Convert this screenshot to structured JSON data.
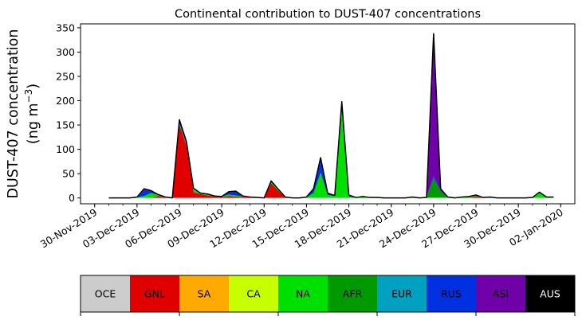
{
  "chart_data": {
    "type": "area",
    "stacked": true,
    "title": "Continental contribution to DUST-407 concentrations",
    "ylabel_main": "DUST-407 concentration",
    "ylabel_unit": "(ng m",
    "ylabel_unit_sup": "−3",
    "ylabel_unit_close": ")",
    "ylim": [
      -12,
      358
    ],
    "yticks": [
      0,
      50,
      100,
      150,
      200,
      250,
      300,
      350
    ],
    "x_range": [
      "2019-11-29",
      "2020-01-03"
    ],
    "xtick_labels": [
      "30-Nov-2019",
      "03-Dec-2019",
      "06-Dec-2019",
      "09-Dec-2019",
      "12-Dec-2019",
      "15-Dec-2019",
      "18-Dec-2019",
      "21-Dec-2019",
      "24-Dec-2019",
      "27-Dec-2019",
      "30-Dec-2019",
      "02-Jan-2020"
    ],
    "xtick_dates": [
      "2019-11-30",
      "2019-12-03",
      "2019-12-06",
      "2019-12-09",
      "2019-12-12",
      "2019-12-15",
      "2019-12-18",
      "2019-12-21",
      "2019-12-24",
      "2019-12-27",
      "2019-12-30",
      "2020-01-02"
    ],
    "x": [
      "2019-12-01",
      "2019-12-01T12:00",
      "2019-12-02",
      "2019-12-02T12:00",
      "2019-12-03",
      "2019-12-03T12:00",
      "2019-12-04",
      "2019-12-04T12:00",
      "2019-12-05",
      "2019-12-05T12:00",
      "2019-12-06",
      "2019-12-06T12:00",
      "2019-12-07",
      "2019-12-07T12:00",
      "2019-12-08",
      "2019-12-08T12:00",
      "2019-12-09",
      "2019-12-09T12:00",
      "2019-12-10",
      "2019-12-10T12:00",
      "2019-12-11",
      "2019-12-11T12:00",
      "2019-12-12",
      "2019-12-12T12:00",
      "2019-12-13",
      "2019-12-13T12:00",
      "2019-12-14",
      "2019-12-14T12:00",
      "2019-12-15",
      "2019-12-15T12:00",
      "2019-12-16",
      "2019-12-16T12:00",
      "2019-12-17",
      "2019-12-17T12:00",
      "2019-12-18",
      "2019-12-18T12:00",
      "2019-12-19",
      "2019-12-19T12:00",
      "2019-12-20",
      "2019-12-20T12:00",
      "2019-12-21",
      "2019-12-21T12:00",
      "2019-12-22",
      "2019-12-22T12:00",
      "2019-12-23",
      "2019-12-23T12:00",
      "2019-12-24",
      "2019-12-24T12:00",
      "2019-12-25",
      "2019-12-25T12:00",
      "2019-12-26",
      "2019-12-26T12:00",
      "2019-12-27",
      "2019-12-27T12:00",
      "2019-12-28",
      "2019-12-28T12:00",
      "2019-12-29",
      "2019-12-29T12:00",
      "2019-12-30",
      "2019-12-30T12:00",
      "2019-12-31",
      "2019-12-31T12:00",
      "2020-01-01",
      "2020-01-01T12:00"
    ],
    "series": [
      {
        "name": "OCE",
        "color": "#cccccc",
        "values": [
          0,
          0,
          0,
          0,
          0,
          0,
          0,
          0,
          0,
          0,
          0,
          0,
          0,
          0,
          0,
          0,
          0,
          0,
          0,
          0,
          0,
          0,
          0,
          0,
          0,
          0,
          0,
          0,
          0,
          0,
          0,
          0,
          0,
          0,
          0,
          0,
          0,
          0,
          0,
          0,
          0,
          0,
          0,
          0,
          0,
          0,
          0,
          0,
          0,
          0,
          0,
          0,
          0,
          0,
          0,
          0,
          0,
          0,
          0,
          0,
          0,
          0,
          0,
          0
        ]
      },
      {
        "name": "GNL",
        "color": "#e00000",
        "values": [
          0,
          0,
          0,
          0,
          0,
          0,
          0,
          4,
          1,
          0,
          150,
          108,
          12,
          8,
          5,
          3,
          2,
          4,
          3,
          2,
          1,
          1,
          0,
          30,
          15,
          1,
          0,
          0,
          0,
          0,
          0,
          0,
          0,
          0,
          0,
          0,
          0,
          0,
          0,
          0,
          0,
          0,
          0,
          0,
          0,
          0,
          0,
          0,
          0,
          0,
          0,
          0,
          3,
          0,
          0,
          0,
          0,
          0,
          0,
          0,
          0,
          0,
          0,
          0
        ]
      },
      {
        "name": "SA",
        "color": "#ffaa00",
        "values": [
          0,
          0,
          0,
          0,
          0,
          0,
          0,
          0,
          0,
          0,
          0,
          0,
          0,
          0,
          0,
          0,
          0,
          0,
          0,
          0,
          0,
          0,
          0,
          0,
          0,
          0,
          0,
          0,
          0,
          0,
          0,
          0,
          0,
          0,
          0,
          0,
          0,
          0,
          0,
          0,
          0,
          0,
          0,
          0,
          0,
          0,
          0,
          0,
          0,
          0,
          0,
          0,
          0,
          0,
          0,
          0,
          0,
          0,
          0,
          0,
          0,
          0,
          0,
          0
        ]
      },
      {
        "name": "CA",
        "color": "#c8ff00",
        "values": [
          0,
          0,
          0,
          0,
          0,
          0,
          0,
          0,
          0,
          0,
          0,
          0,
          0,
          0,
          0,
          0,
          0,
          0,
          0,
          0,
          0,
          0,
          0,
          0,
          0,
          0,
          0,
          0,
          0,
          0,
          0,
          0,
          0,
          0,
          0,
          0,
          0,
          0,
          0,
          0,
          0,
          0,
          0,
          0,
          0,
          0,
          0,
          0,
          0,
          0,
          0,
          0,
          0,
          0,
          0,
          0,
          0,
          0,
          0,
          0,
          0,
          0,
          0,
          0
        ]
      },
      {
        "name": "NA",
        "color": "#00e000",
        "values": [
          0,
          0,
          0,
          0,
          1,
          4,
          10,
          2,
          0,
          0,
          3,
          2,
          6,
          1,
          2,
          1,
          1,
          3,
          2,
          1,
          0,
          0,
          0,
          2,
          2,
          0,
          0,
          0,
          1,
          10,
          52,
          6,
          4,
          178,
          3,
          1,
          3,
          1,
          1,
          0,
          0,
          0,
          0,
          2,
          0,
          1,
          1,
          1,
          1,
          0,
          2,
          3,
          1,
          1,
          2,
          0,
          0,
          0,
          0,
          0,
          1,
          12,
          2,
          2
        ]
      },
      {
        "name": "AFR",
        "color": "#009900",
        "values": [
          0,
          0,
          0,
          0,
          0,
          0,
          0,
          0,
          0,
          0,
          0,
          0,
          0,
          0,
          0,
          0,
          0,
          0,
          0,
          0,
          0,
          0,
          0,
          0,
          0,
          0,
          0,
          0,
          0,
          0,
          0,
          0,
          0,
          0,
          0,
          0,
          0,
          0,
          0,
          0,
          0,
          0,
          0,
          0,
          0,
          0,
          40,
          12,
          0,
          0,
          0,
          0,
          0,
          0,
          0,
          0,
          0,
          0,
          0,
          0,
          0,
          0,
          0,
          0
        ]
      },
      {
        "name": "EUR",
        "color": "#00a0c0",
        "values": [
          0,
          0,
          0,
          0,
          0,
          0,
          0,
          0,
          0,
          0,
          0,
          0,
          0,
          0,
          0,
          0,
          0,
          0,
          0,
          0,
          0,
          0,
          0,
          0,
          0,
          0,
          0,
          0,
          0,
          0,
          0,
          0,
          0,
          0,
          0,
          0,
          0,
          0,
          0,
          0,
          0,
          0,
          0,
          0,
          0,
          0,
          0,
          0,
          0,
          0,
          0,
          0,
          0,
          0,
          0,
          0,
          0,
          0,
          0,
          0,
          0,
          0,
          0,
          0
        ]
      },
      {
        "name": "RUS",
        "color": "#0030e0",
        "values": [
          0,
          0,
          0,
          0,
          1,
          12,
          5,
          1,
          1,
          0,
          5,
          3,
          1,
          1,
          1,
          0,
          0,
          5,
          8,
          1,
          1,
          0,
          0,
          2,
          1,
          1,
          0,
          0,
          1,
          8,
          25,
          3,
          1,
          15,
          2,
          0,
          0,
          0,
          0,
          0,
          0,
          0,
          0,
          0,
          0,
          0,
          5,
          2,
          0,
          0,
          0,
          0,
          1,
          0,
          0,
          0,
          0,
          0,
          0,
          0,
          0,
          0,
          0,
          0
        ]
      },
      {
        "name": "ASI",
        "color": "#7000a8",
        "values": [
          0,
          0,
          0,
          0,
          0,
          3,
          0,
          0,
          0,
          0,
          3,
          3,
          1,
          0,
          0,
          0,
          0,
          1,
          1,
          0,
          0,
          0,
          0,
          1,
          0,
          0,
          0,
          0,
          0,
          1,
          6,
          1,
          0,
          5,
          1,
          0,
          0,
          0,
          0,
          0,
          0,
          0,
          0,
          0,
          0,
          0,
          292,
          4,
          1,
          0,
          0,
          0,
          1,
          0,
          0,
          0,
          0,
          0,
          0,
          0,
          0,
          0,
          0,
          0
        ]
      },
      {
        "name": "AUS",
        "color": "#000000",
        "values": [
          0,
          0,
          0,
          0,
          0,
          0,
          0,
          0,
          0,
          0,
          0,
          0,
          0,
          0,
          0,
          0,
          0,
          0,
          0,
          0,
          0,
          0,
          0,
          0,
          0,
          0,
          0,
          0,
          0,
          0,
          0,
          0,
          0,
          0,
          0,
          0,
          0,
          0,
          0,
          0,
          0,
          0,
          0,
          0,
          0,
          0,
          0,
          0,
          0,
          0,
          0,
          0,
          0,
          0,
          0,
          0,
          0,
          0,
          0,
          0,
          0,
          0,
          0,
          0
        ]
      }
    ],
    "legend_placement": "bottom colorbar",
    "grid": false
  }
}
